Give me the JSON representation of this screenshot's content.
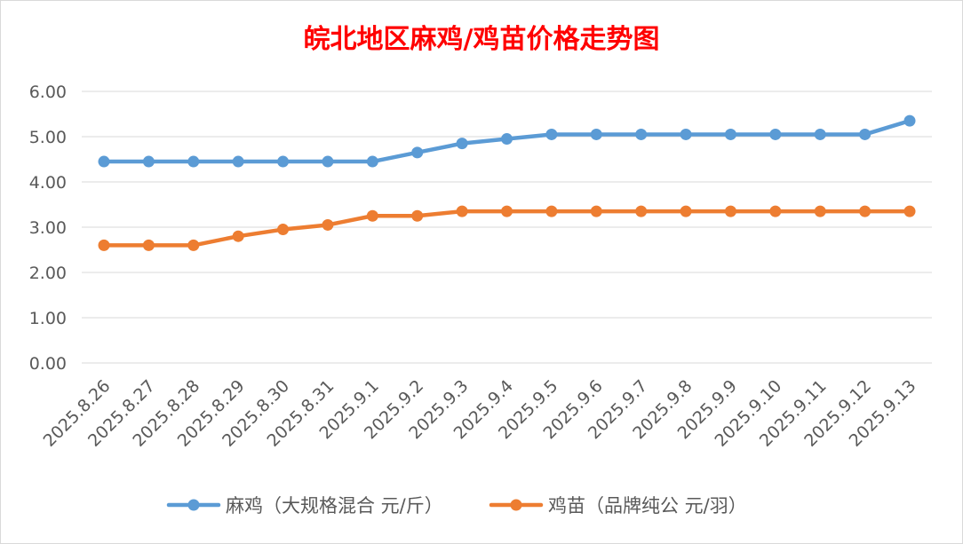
{
  "chart_data": {
    "type": "line",
    "title": "皖北地区麻鸡/鸡苗价格走势图",
    "categories": [
      "2025.8.26",
      "2025.8.27",
      "2025.8.28",
      "2025.8.29",
      "2025.8.30",
      "2025.8.31",
      "2025.9.1",
      "2025.9.2",
      "2025.9.3",
      "2025.9.4",
      "2025.9.5",
      "2025.9.6",
      "2025.9.7",
      "2025.9.8",
      "2025.9.9",
      "2025.9.10",
      "2025.9.11",
      "2025.9.12",
      "2025.9.13"
    ],
    "series": [
      {
        "name": "麻鸡（大规格混合 元/斤）",
        "color": "#5b9bd5",
        "values": [
          4.45,
          4.45,
          4.45,
          4.45,
          4.45,
          4.45,
          4.45,
          4.65,
          4.85,
          4.95,
          5.05,
          5.05,
          5.05,
          5.05,
          5.05,
          5.05,
          5.05,
          5.05,
          5.35
        ]
      },
      {
        "name": "鸡苗（品牌纯公 元/羽）",
        "color": "#ed7d31",
        "values": [
          2.6,
          2.6,
          2.6,
          2.8,
          2.95,
          3.05,
          3.25,
          3.25,
          3.35,
          3.35,
          3.35,
          3.35,
          3.35,
          3.35,
          3.35,
          3.35,
          3.35,
          3.35,
          3.35
        ]
      }
    ],
    "y_ticks": [
      "0.00",
      "1.00",
      "2.00",
      "3.00",
      "4.00",
      "5.00",
      "6.00"
    ],
    "ylim": [
      0,
      6
    ],
    "grid": true,
    "legend": "bottom"
  }
}
